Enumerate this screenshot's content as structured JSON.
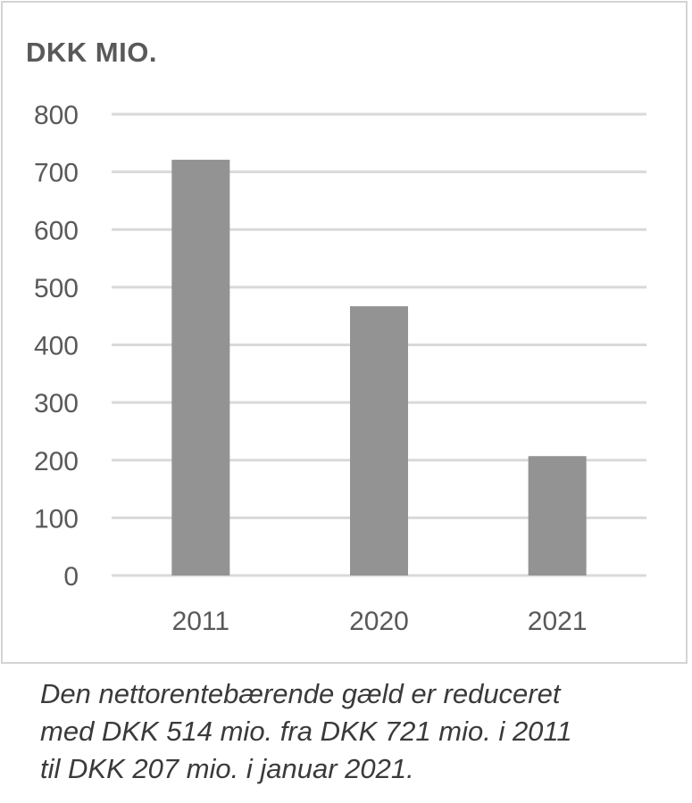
{
  "unit_label": "DKK MIO.",
  "caption": [
    "Den nettorentebærende gæld er reduceret",
    "med DKK 514 mio. fra DKK 721 mio. i 2011",
    "til DKK 207 mio. i januar 2021."
  ],
  "colors": {
    "bar": "#939393",
    "grid": "#d9d9d9",
    "tick_text": "#595959"
  },
  "chart_data": {
    "type": "bar",
    "categories": [
      "2011",
      "2020",
      "2021"
    ],
    "values": [
      721,
      467,
      207
    ],
    "yticks": [
      "0",
      "100",
      "200",
      "300",
      "400",
      "500",
      "600",
      "700",
      "800"
    ],
    "ylim": [
      0,
      800
    ],
    "grid": true,
    "legend": "none"
  }
}
